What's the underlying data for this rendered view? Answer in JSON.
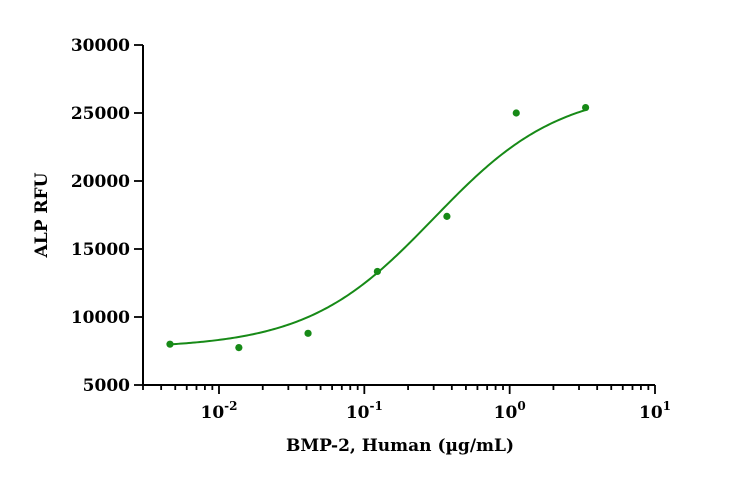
{
  "chart_data": {
    "type": "scatter",
    "xlabel": "BMP-2, Human (µg/mL)",
    "ylabel": "ALP RFU",
    "xscale": "log",
    "xlim": [
      0.003,
      10
    ],
    "ylim": [
      5000,
      30000
    ],
    "x_ticks": [
      {
        "value": 0.01,
        "base": "10",
        "exp": "-2"
      },
      {
        "value": 0.1,
        "base": "10",
        "exp": "-1"
      },
      {
        "value": 1,
        "base": "10",
        "exp": "0"
      },
      {
        "value": 10,
        "base": "10",
        "exp": "1"
      }
    ],
    "y_ticks": [
      5000,
      10000,
      15000,
      20000,
      25000,
      30000
    ],
    "y_tick_labels": [
      "5000",
      "10000",
      "15000",
      "20000",
      "25000",
      "30000"
    ],
    "color": "#178a17",
    "series": [
      {
        "points": [
          {
            "x": 0.0046,
            "y": 8000
          },
          {
            "x": 0.0137,
            "y": 7750
          },
          {
            "x": 0.041,
            "y": 8800
          },
          {
            "x": 0.123,
            "y": 13350
          },
          {
            "x": 0.37,
            "y": 17400
          },
          {
            "x": 1.11,
            "y": 25000
          },
          {
            "x": 3.33,
            "y": 25400
          }
        ],
        "fit": {
          "model": "4PL",
          "bottom": 7700,
          "top": 26800,
          "ec50": 0.3,
          "hill": 1.0,
          "x_range": [
            0.0046,
            3.33
          ]
        }
      }
    ]
  }
}
